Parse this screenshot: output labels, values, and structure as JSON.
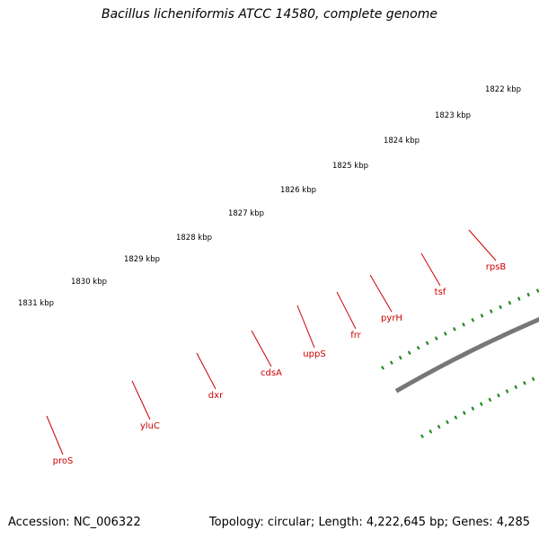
{
  "title": "Bacillus licheniformis ATCC 14580, complete genome",
  "accession_line": "Accession: NC_006322",
  "topology_line": "Topology: circular; Length: 4,222,645 bp; Genes: 4,285",
  "colors": {
    "backbone": "#777777",
    "gene_red": "#e10000",
    "gene_pink": "#ef8a8a",
    "gene_purple": "#7b6cd4",
    "gene_olive": "#6b8e23",
    "gene_cyan": "#1ec8ee",
    "gene_orange": "#f5a000",
    "ticks": "#228b22",
    "labels": "#cc0000"
  },
  "kbp_labels": [
    "1822 kbp",
    "1823 kbp",
    "1824 kbp",
    "1825 kbp",
    "1826 kbp",
    "1827 kbp",
    "1828 kbp",
    "1829 kbp",
    "1830 kbp",
    "1831 kbp"
  ],
  "gene_labels": [
    "rpsB",
    "tsf",
    "pyrH",
    "frr",
    "uppS",
    "cdsA",
    "dxr",
    "yluC",
    "proS"
  ]
}
